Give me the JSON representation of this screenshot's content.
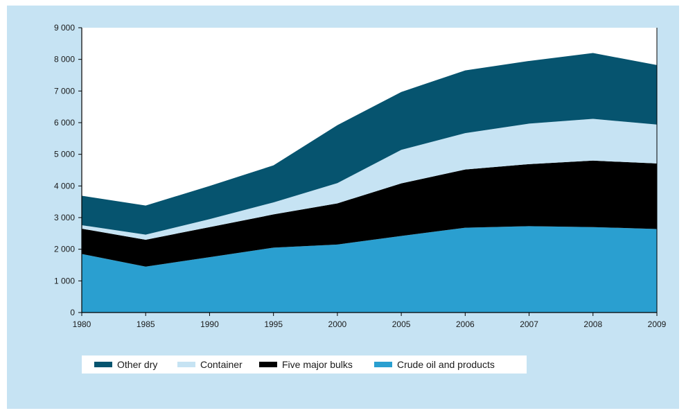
{
  "chart_data": {
    "type": "area",
    "stacked": true,
    "x": [
      "1980",
      "1985",
      "1990",
      "1995",
      "2000",
      "2005",
      "2006",
      "2007",
      "2008",
      "2009"
    ],
    "ylim": [
      0,
      9000
    ],
    "yticks": [
      0,
      1000,
      2000,
      3000,
      4000,
      5000,
      6000,
      7000,
      8000,
      9000
    ],
    "ytick_labels": [
      "0",
      "1 000",
      "2 000",
      "3 000",
      "4 000",
      "5 000",
      "6 000",
      "7 000",
      "8 000",
      "9 000"
    ],
    "title": "",
    "xlabel": "",
    "ylabel": "",
    "legend_position": "bottom-left",
    "series": [
      {
        "name": "Crude oil and products",
        "color": "#2a9fd0",
        "values": [
          1850,
          1450,
          1750,
          2050,
          2150,
          2420,
          2680,
          2730,
          2700,
          2640
        ]
      },
      {
        "name": "Five major bulks",
        "color": "#000000",
        "values": [
          800,
          850,
          950,
          1050,
          1300,
          1660,
          1840,
          1960,
          2100,
          2070
        ]
      },
      {
        "name": "Container",
        "color": "#c6e3f3",
        "values": [
          110,
          160,
          250,
          380,
          640,
          1060,
          1150,
          1280,
          1320,
          1230
        ]
      },
      {
        "name": "Other dry",
        "color": "#06546f",
        "values": [
          930,
          920,
          1050,
          1170,
          1830,
          1830,
          1980,
          1980,
          2080,
          1880
        ]
      }
    ],
    "legend_order": [
      "Other dry",
      "Container",
      "Five major bulks",
      "Crude oil and products"
    ]
  }
}
